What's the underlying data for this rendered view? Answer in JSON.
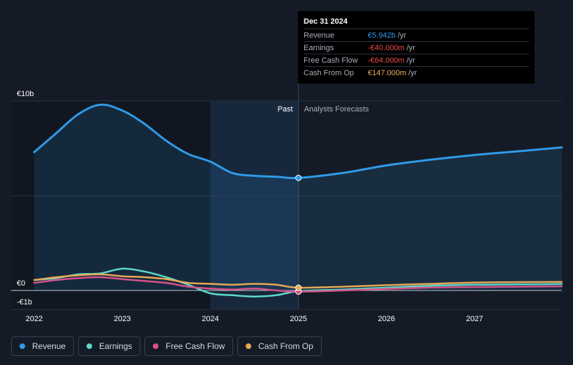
{
  "tooltip": {
    "date": "Dec 31 2024",
    "rows": [
      {
        "label": "Revenue",
        "value": "€5.942b",
        "unit": "/yr",
        "color": "#2f9be8"
      },
      {
        "label": "Earnings",
        "value": "-€40.000m",
        "unit": "/yr",
        "color": "#f24a4a"
      },
      {
        "label": "Free Cash Flow",
        "value": "-€64.000m",
        "unit": "/yr",
        "color": "#f24a4a"
      },
      {
        "label": "Cash From Op",
        "value": "€147.000m",
        "unit": "/yr",
        "color": "#e8b060"
      }
    ]
  },
  "legend": [
    {
      "label": "Revenue",
      "color": "#2f9be8"
    },
    {
      "label": "Earnings",
      "color": "#5fd8c8"
    },
    {
      "label": "Free Cash Flow",
      "color": "#d6538a"
    },
    {
      "label": "Cash From Op",
      "color": "#e8a855"
    }
  ],
  "chart_data": {
    "type": "line",
    "y_tick_labels": [
      "€10b",
      "€0",
      "-€1b"
    ],
    "y_ticks": [
      10,
      0,
      -1
    ],
    "ylim": [
      -1,
      10
    ],
    "xlim": [
      2022,
      2028
    ],
    "x_tick_labels": [
      "2022",
      "2023",
      "2024",
      "2025",
      "2026",
      "2027"
    ],
    "x_ticks": [
      2022,
      2023,
      2024,
      2025,
      2026,
      2027
    ],
    "divider_x": 2025,
    "highlight_band": [
      2024,
      2025
    ],
    "past_label": "Past",
    "forecast_label": "Analysts Forecasts",
    "units": "€ billions",
    "series": [
      {
        "name": "Revenue",
        "color": "#2f9be8",
        "area": true,
        "x": [
          2022.0,
          2022.25,
          2022.5,
          2022.75,
          2023.0,
          2023.25,
          2023.5,
          2023.75,
          2024.0,
          2024.25,
          2024.5,
          2024.75,
          2025.0,
          2025.5,
          2026.0,
          2026.5,
          2027.0,
          2027.5,
          2028.0
        ],
        "y": [
          7.3,
          8.3,
          9.3,
          9.8,
          9.5,
          8.8,
          7.9,
          7.2,
          6.8,
          6.2,
          6.05,
          6.0,
          5.942,
          6.2,
          6.6,
          6.9,
          7.15,
          7.35,
          7.55
        ]
      },
      {
        "name": "Earnings",
        "color": "#5fd8c8",
        "area": false,
        "x": [
          2022.0,
          2022.25,
          2022.5,
          2022.75,
          2023.0,
          2023.25,
          2023.5,
          2023.75,
          2024.0,
          2024.25,
          2024.5,
          2024.75,
          2025.0,
          2025.5,
          2026.0,
          2026.5,
          2027.0,
          2027.5,
          2028.0
        ],
        "y": [
          0.55,
          0.65,
          0.85,
          0.9,
          1.15,
          1.0,
          0.7,
          0.3,
          -0.15,
          -0.25,
          -0.32,
          -0.25,
          -0.04,
          0.05,
          0.15,
          0.25,
          0.3,
          0.32,
          0.34
        ]
      },
      {
        "name": "Free Cash Flow",
        "color": "#d6538a",
        "area": false,
        "x": [
          2022.0,
          2022.25,
          2022.5,
          2022.75,
          2023.0,
          2023.25,
          2023.5,
          2023.75,
          2024.0,
          2024.25,
          2024.5,
          2024.75,
          2025.0,
          2025.5,
          2026.0,
          2026.5,
          2027.0,
          2027.5,
          2028.0
        ],
        "y": [
          0.4,
          0.55,
          0.65,
          0.7,
          0.6,
          0.5,
          0.4,
          0.2,
          0.1,
          0.05,
          0.1,
          0.0,
          -0.064,
          0.0,
          0.08,
          0.15,
          0.18,
          0.2,
          0.22
        ]
      },
      {
        "name": "Cash From Op",
        "color": "#e8a855",
        "area": false,
        "x": [
          2022.0,
          2022.25,
          2022.5,
          2022.75,
          2023.0,
          2023.25,
          2023.5,
          2023.75,
          2024.0,
          2024.25,
          2024.5,
          2024.75,
          2025.0,
          2025.5,
          2026.0,
          2026.5,
          2027.0,
          2027.5,
          2028.0
        ],
        "y": [
          0.55,
          0.7,
          0.8,
          0.85,
          0.75,
          0.7,
          0.6,
          0.4,
          0.35,
          0.3,
          0.35,
          0.3,
          0.147,
          0.2,
          0.28,
          0.35,
          0.42,
          0.44,
          0.45
        ]
      }
    ]
  }
}
